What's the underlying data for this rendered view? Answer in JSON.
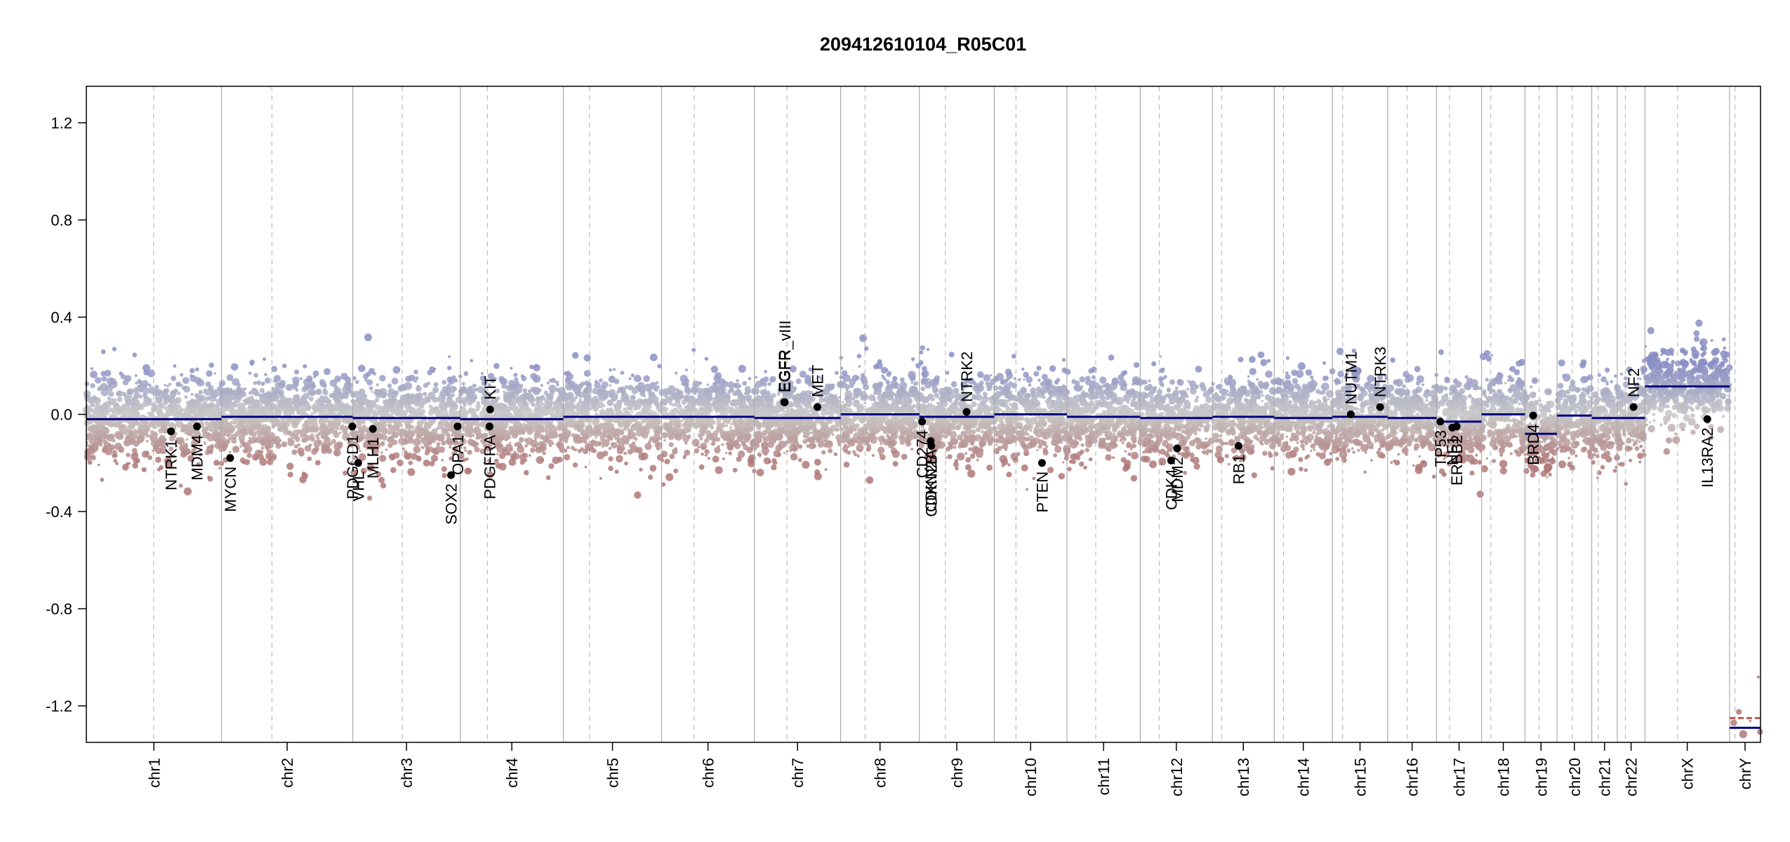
{
  "chart_data": {
    "type": "scatter",
    "title": "209412610104_R05C01",
    "xlabel": "",
    "ylabel": "",
    "ylim": [
      -1.35,
      1.35
    ],
    "yticks": [
      1.2,
      0.8,
      0.4,
      0.0,
      -0.4,
      -0.8,
      -1.2
    ],
    "ytick_labels": [
      "1.2",
      "0.8",
      "0.4",
      "0.0",
      "-0.4",
      "-0.8",
      "-1.2"
    ],
    "x_unit": "Mb",
    "chromosomes": [
      {
        "name": "chr1",
        "length": 249,
        "centromere": 124
      },
      {
        "name": "chr2",
        "length": 242,
        "centromere": 93
      },
      {
        "name": "chr3",
        "length": 198,
        "centromere": 91
      },
      {
        "name": "chr4",
        "length": 190,
        "centromere": 50
      },
      {
        "name": "chr5",
        "length": 181,
        "centromere": 48
      },
      {
        "name": "chr6",
        "length": 171,
        "centromere": 60
      },
      {
        "name": "chr7",
        "length": 159,
        "centromere": 60
      },
      {
        "name": "chr8",
        "length": 145,
        "centromere": 45
      },
      {
        "name": "chr9",
        "length": 138,
        "centromere": 48
      },
      {
        "name": "chr10",
        "length": 134,
        "centromere": 40
      },
      {
        "name": "chr11",
        "length": 135,
        "centromere": 53
      },
      {
        "name": "chr12",
        "length": 133,
        "centromere": 35
      },
      {
        "name": "chr13",
        "length": 114,
        "centromere": 17
      },
      {
        "name": "chr14",
        "length": 107,
        "centromere": 17
      },
      {
        "name": "chr15",
        "length": 102,
        "centromere": 19
      },
      {
        "name": "chr16",
        "length": 90,
        "centromere": 36
      },
      {
        "name": "chr17",
        "length": 83,
        "centromere": 24
      },
      {
        "name": "chr18",
        "length": 80,
        "centromere": 17
      },
      {
        "name": "chr19",
        "length": 59,
        "centromere": 26
      },
      {
        "name": "chr20",
        "length": 64,
        "centromere": 28
      },
      {
        "name": "chr21",
        "length": 47,
        "centromere": 12
      },
      {
        "name": "chr22",
        "length": 51,
        "centromere": 15
      },
      {
        "name": "chrX",
        "length": 156,
        "centromere": 60
      },
      {
        "name": "chrY",
        "length": 57,
        "centromere": 10
      }
    ],
    "segments": [
      {
        "chr": "chr1",
        "start": 0,
        "end": 249,
        "value": -0.02
      },
      {
        "chr": "chr2",
        "start": 0,
        "end": 242,
        "value": -0.01
      },
      {
        "chr": "chr3",
        "start": 0,
        "end": 198,
        "value": -0.015
      },
      {
        "chr": "chr4",
        "start": 0,
        "end": 190,
        "value": -0.02
      },
      {
        "chr": "chr5",
        "start": 0,
        "end": 181,
        "value": -0.01
      },
      {
        "chr": "chr6",
        "start": 0,
        "end": 171,
        "value": -0.01
      },
      {
        "chr": "chr7",
        "start": 0,
        "end": 159,
        "value": -0.015
      },
      {
        "chr": "chr8",
        "start": 0,
        "end": 145,
        "value": 0.0
      },
      {
        "chr": "chr9",
        "start": 0,
        "end": 138,
        "value": -0.01
      },
      {
        "chr": "chr10",
        "start": 0,
        "end": 134,
        "value": 0.0
      },
      {
        "chr": "chr11",
        "start": 0,
        "end": 135,
        "value": -0.01
      },
      {
        "chr": "chr12",
        "start": 0,
        "end": 133,
        "value": -0.015
      },
      {
        "chr": "chr13",
        "start": 0,
        "end": 114,
        "value": -0.01
      },
      {
        "chr": "chr14",
        "start": 0,
        "end": 107,
        "value": -0.015
      },
      {
        "chr": "chr15",
        "start": 0,
        "end": 102,
        "value": -0.01
      },
      {
        "chr": "chr16",
        "start": 0,
        "end": 90,
        "value": -0.015
      },
      {
        "chr": "chr17",
        "start": 0,
        "end": 83,
        "value": -0.03
      },
      {
        "chr": "chr18",
        "start": 0,
        "end": 80,
        "value": 0.0
      },
      {
        "chr": "chr19",
        "start": 0,
        "end": 59,
        "value": -0.08
      },
      {
        "chr": "chr20",
        "start": 0,
        "end": 64,
        "value": -0.005
      },
      {
        "chr": "chr21",
        "start": 0,
        "end": 47,
        "value": -0.015
      },
      {
        "chr": "chr22",
        "start": 0,
        "end": 51,
        "value": -0.015
      },
      {
        "chr": "chrX",
        "start": 0,
        "end": 156,
        "value": 0.115
      },
      {
        "chr": "chrY",
        "start": 0,
        "end": 57,
        "value": -1.29
      }
    ],
    "chrY_marker": {
      "value": -1.25,
      "color": "#c0392b"
    },
    "genes": [
      {
        "name": "NTRK1",
        "chr": "chr1",
        "pos": 156,
        "value": -0.07,
        "label_side": "below"
      },
      {
        "name": "MDM4",
        "chr": "chr1",
        "pos": 204,
        "value": -0.05,
        "label_side": "below"
      },
      {
        "name": "MYCN",
        "chr": "chr2",
        "pos": 16,
        "value": -0.18,
        "label_side": "below"
      },
      {
        "name": "PDGCD1",
        "chr": "chr2",
        "pos": 241,
        "value": -0.05,
        "label_side": "below"
      },
      {
        "name": "VHL",
        "chr": "chr3",
        "pos": 10,
        "value": -0.2,
        "label_side": "below"
      },
      {
        "name": "MLH1",
        "chr": "chr3",
        "pos": 37,
        "value": -0.06,
        "label_side": "below"
      },
      {
        "name": "SOX2",
        "chr": "chr3",
        "pos": 181,
        "value": -0.25,
        "label_side": "below"
      },
      {
        "name": "OPA1",
        "chr": "chr3",
        "pos": 193,
        "value": -0.05,
        "label_side": "below"
      },
      {
        "name": "KIT",
        "chr": "chr4",
        "pos": 55,
        "value": 0.02,
        "label_side": "above"
      },
      {
        "name": "PDGFRA",
        "chr": "chr4",
        "pos": 54,
        "value": -0.05,
        "label_side": "below"
      },
      {
        "name": "EGFR",
        "chr": "chr7",
        "pos": 55,
        "value": 0.05,
        "label_side": "above"
      },
      {
        "name": "EGFR_vIII",
        "chr": "chr7",
        "pos": 56,
        "value": 0.05,
        "label_side": "above"
      },
      {
        "name": "MET",
        "chr": "chr7",
        "pos": 116,
        "value": 0.03,
        "label_side": "above"
      },
      {
        "name": "CD274",
        "chr": "chr9",
        "pos": 5,
        "value": -0.03,
        "label_side": "below"
      },
      {
        "name": "CDKN2A",
        "chr": "chr9",
        "pos": 21,
        "value": -0.11,
        "label_side": "below"
      },
      {
        "name": "CDKN2B",
        "chr": "chr9",
        "pos": 22,
        "value": -0.13,
        "label_side": "below"
      },
      {
        "name": "NTRK2",
        "chr": "chr9",
        "pos": 87,
        "value": 0.01,
        "label_side": "above"
      },
      {
        "name": "PTEN",
        "chr": "chr10",
        "pos": 88,
        "value": -0.2,
        "label_side": "below"
      },
      {
        "name": "CDK4",
        "chr": "chr12",
        "pos": 57,
        "value": -0.19,
        "label_side": "below"
      },
      {
        "name": "MDM2",
        "chr": "chr12",
        "pos": 68,
        "value": -0.14,
        "label_side": "below"
      },
      {
        "name": "RB1",
        "chr": "chr13",
        "pos": 48,
        "value": -0.13,
        "label_side": "below"
      },
      {
        "name": "NUTM1",
        "chr": "chr15",
        "pos": 34,
        "value": 0.0,
        "label_side": "above"
      },
      {
        "name": "NTRK3",
        "chr": "chr15",
        "pos": 88,
        "value": 0.03,
        "label_side": "above"
      },
      {
        "name": "TP53",
        "chr": "chr17",
        "pos": 7,
        "value": -0.03,
        "label_side": "below"
      },
      {
        "name": "ERBB2",
        "chr": "chr17",
        "pos": 37,
        "value": -0.05,
        "label_side": "below"
      },
      {
        "name": "NF1",
        "chr": "chr17",
        "pos": 29,
        "value": -0.055,
        "label_side": "below"
      },
      {
        "name": "BRD4",
        "chr": "chr19",
        "pos": 15,
        "value": -0.005,
        "label_side": "below"
      },
      {
        "name": "NF2",
        "chr": "chr22",
        "pos": 30,
        "value": 0.03,
        "label_side": "above"
      },
      {
        "name": "IL13RA2",
        "chrX": true,
        "chr": "chrX",
        "pos": 115,
        "value": -0.02,
        "label_side": "below"
      }
    ],
    "colors": {
      "gain": "#8a8fc4",
      "neutral": "#c8c8c8",
      "loss": "#b07878",
      "segment": "#000080",
      "gene_point": "#000000",
      "separator": "#aaaaaa",
      "centromere": "#bbbbbb"
    },
    "grid": false,
    "legend": "none"
  }
}
